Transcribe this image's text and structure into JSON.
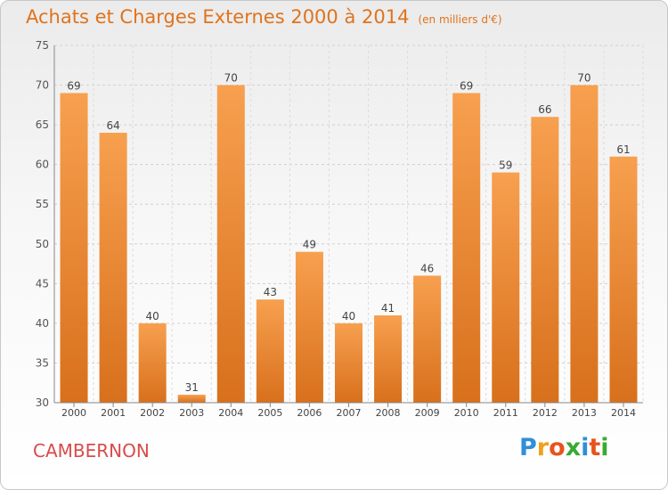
{
  "chart_data": {
    "type": "bar",
    "title": "Achats et Charges Externes 2000 à 2014",
    "subtitle": "(en milliers d'€)",
    "categories": [
      "2000",
      "2001",
      "2002",
      "2003",
      "2004",
      "2005",
      "2006",
      "2007",
      "2008",
      "2009",
      "2010",
      "2011",
      "2012",
      "2013",
      "2014"
    ],
    "values": [
      69,
      64,
      40,
      31,
      70,
      43,
      49,
      40,
      41,
      46,
      69,
      59,
      66,
      70,
      61
    ],
    "ylim": [
      30,
      75
    ],
    "yticks": [
      30,
      35,
      40,
      45,
      50,
      55,
      60,
      65,
      70,
      75
    ],
    "grid": true,
    "legend": "none",
    "bar_color_top": "#f7a04f",
    "bar_color_bottom": "#d8701c"
  },
  "footer": {
    "commune": "CAMBERNON",
    "brand": [
      "P",
      "r",
      "o",
      "x",
      "i",
      "t",
      "i"
    ],
    "brand_colors": [
      "#2f8fd8",
      "#f0a01a",
      "#e8531e",
      "#3aaa35",
      "#2f8fd8",
      "#e8531e",
      "#3aaa35"
    ]
  }
}
